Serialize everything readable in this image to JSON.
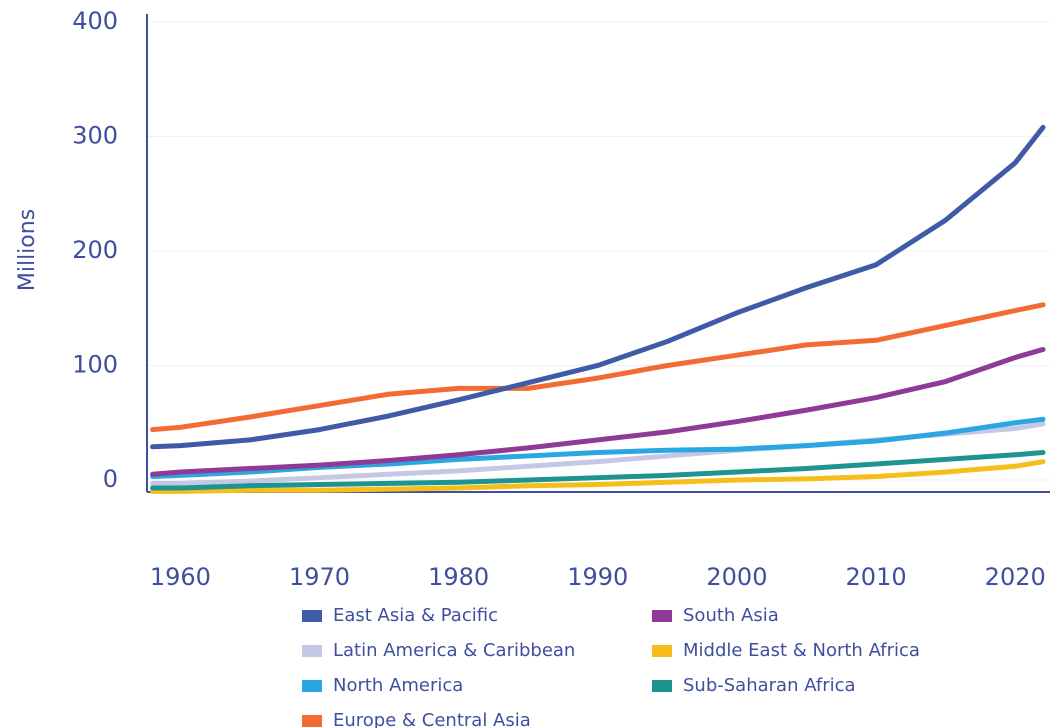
{
  "chart_data": {
    "type": "line",
    "y_label": "Millions",
    "x": [
      1958,
      1960,
      1965,
      1970,
      1975,
      1980,
      1985,
      1990,
      1995,
      2000,
      2005,
      2010,
      2015,
      2020,
      2022
    ],
    "xlim": [
      1957.6,
      2022.5
    ],
    "xticks": [
      1960,
      1970,
      1980,
      1990,
      2000,
      2010,
      2020
    ],
    "ylim": [
      -10.5,
      407
    ],
    "yticks": [
      0,
      100,
      200,
      300,
      400
    ],
    "grid": true,
    "series": [
      {
        "name": "East Asia & Pacific",
        "color": "#3f5aa6",
        "values": [
          29,
          30,
          35,
          44,
          56,
          70,
          85,
          100,
          121,
          146,
          168,
          188,
          227,
          277,
          308
        ]
      },
      {
        "name": "South Asia",
        "color": "#8e3a96",
        "values": [
          5,
          7,
          10,
          13,
          17,
          22,
          28,
          35,
          42,
          51,
          61,
          72,
          86,
          107,
          114
        ]
      },
      {
        "name": "Latin America & Caribbean",
        "color": "#c5c8e4",
        "values": [
          -3,
          -3,
          -1,
          2,
          5,
          8,
          12,
          16,
          21,
          26,
          30,
          35,
          40,
          45,
          49
        ]
      },
      {
        "name": "Middle East & North Africa",
        "color": "#f5be1b",
        "values": [
          -10,
          -10,
          -9,
          -9,
          -8,
          -7,
          -5,
          -4,
          -2,
          0,
          1,
          3,
          7,
          12,
          16
        ]
      },
      {
        "name": "North America",
        "color": "#2aa6e0",
        "values": [
          3,
          4,
          7,
          11,
          14,
          18,
          21,
          24,
          26,
          27,
          30,
          34,
          41,
          50,
          53
        ]
      },
      {
        "name": "Sub-Saharan Africa",
        "color": "#1e9490",
        "values": [
          -7,
          -7,
          -5,
          -4,
          -3,
          -2,
          0,
          2,
          4,
          7,
          10,
          14,
          18,
          22,
          24
        ]
      },
      {
        "name": "Europe & Central Asia",
        "color": "#f26b35",
        "values": [
          44,
          46,
          55,
          65,
          75,
          80,
          80,
          89,
          100,
          109,
          118,
          122,
          135,
          148,
          153
        ]
      }
    ]
  }
}
